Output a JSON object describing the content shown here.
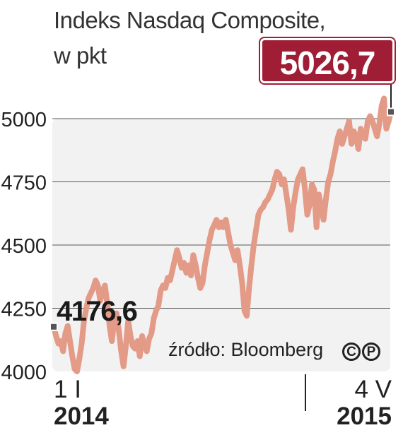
{
  "chart_data": {
    "type": "line",
    "title_lines": [
      "Indeks Nasdaq Composite,",
      "w pkt"
    ],
    "source": "źródło: Bloomberg",
    "y_ticks": [
      4000,
      4250,
      4500,
      4750,
      5000
    ],
    "y_tick_labels": [
      "4000",
      "4250",
      "4500",
      "4750",
      "5000"
    ],
    "ylim": [
      4000,
      5100
    ],
    "grid": true,
    "x_start_label": [
      "1 I",
      "2014"
    ],
    "x_end_label": [
      "4 V",
      "2015"
    ],
    "first_value_label": "4176,6",
    "last_value_label": "5026,7",
    "series": [
      {
        "color": "#e39a86",
        "values": [
          4176.6,
          4140,
          4110,
          4120,
          4080,
          4150,
          4180,
          4120,
          4060,
          4010,
          4000,
          4050,
          4110,
          4200,
          4250,
          4290,
          4310,
          4330,
          4360,
          4340,
          4280,
          4320,
          4340,
          4270,
          4180,
          4120,
          4200,
          4230,
          4160,
          4080,
          4020,
          4100,
          4200,
          4140,
          4100,
          4090,
          4120,
          4060,
          4140,
          4100,
          4080,
          4130,
          4150,
          4210,
          4240,
          4260,
          4320,
          4340,
          4330,
          4370,
          4360,
          4400,
          4440,
          4480,
          4450,
          4410,
          4430,
          4390,
          4420,
          4380,
          4460,
          4420,
          4370,
          4330,
          4350,
          4420,
          4470,
          4520,
          4560,
          4580,
          4600,
          4570,
          4590,
          4570,
          4600,
          4550,
          4500,
          4470,
          4440,
          4480,
          4420,
          4350,
          4240,
          4220,
          4330,
          4420,
          4500,
          4560,
          4620,
          4640,
          4650,
          4670,
          4680,
          4700,
          4720,
          4760,
          4790,
          4780,
          4740,
          4760,
          4700,
          4640,
          4560,
          4650,
          4710,
          4760,
          4780,
          4800,
          4720,
          4620,
          4660,
          4740,
          4720,
          4570,
          4700,
          4650,
          4600,
          4680,
          4750,
          4780,
          4830,
          4870,
          4920,
          4950,
          4900,
          4930,
          4960,
          4990,
          4900,
          4950,
          4930,
          4880,
          4960,
          4930,
          4920,
          4990,
          5010,
          4990,
          4960,
          4930,
          4980,
          5050,
          5080,
          4960,
          4990,
          5026.7
        ]
      }
    ]
  }
}
